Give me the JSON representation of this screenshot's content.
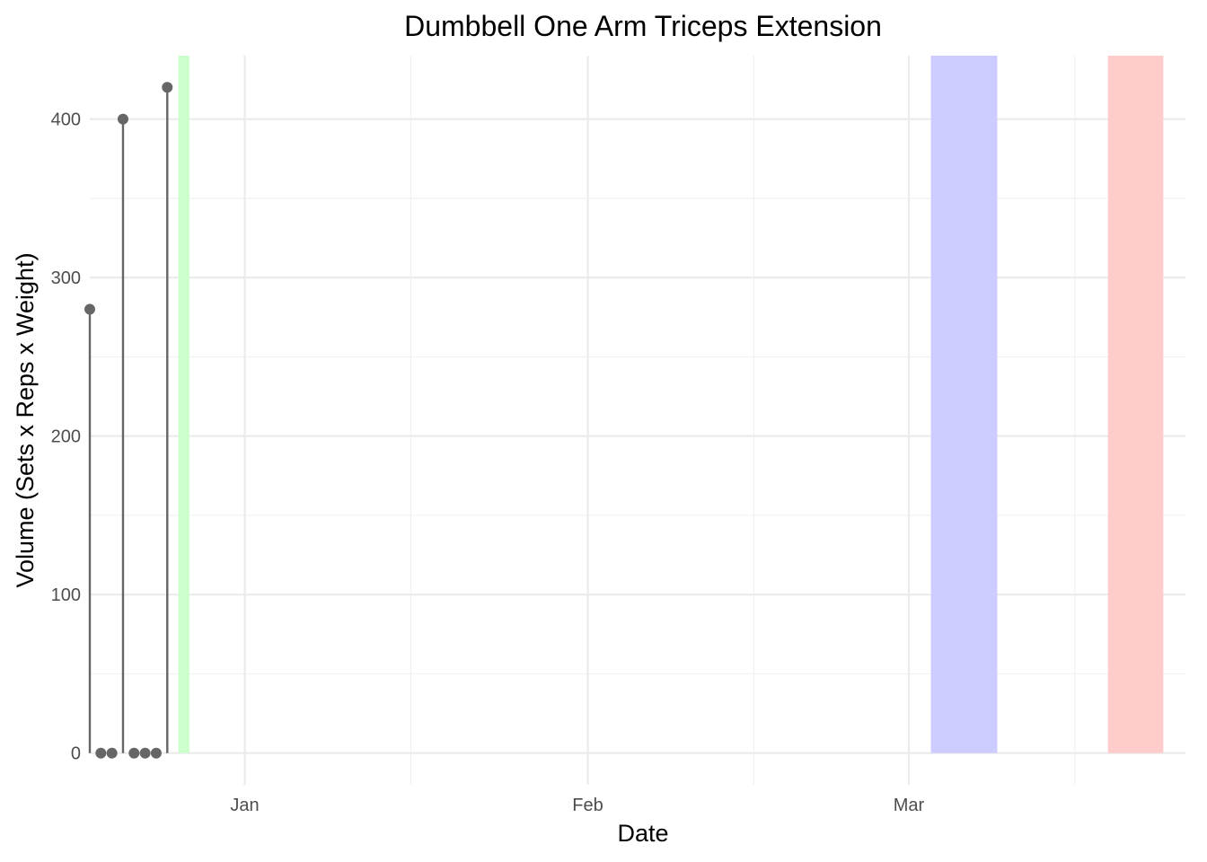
{
  "chart_data": {
    "type": "lollipop",
    "title": "Dumbbell One Arm Triceps Extension",
    "xlabel": "Date",
    "ylabel": "Volume (Sets x Reps x Weight)",
    "x_axis": {
      "type": "date",
      "range": [
        "2023-12-18",
        "2024-03-26"
      ],
      "major_ticks": [
        {
          "date": "2024-01-01",
          "label": "Jan"
        },
        {
          "date": "2024-02-01",
          "label": "Feb"
        },
        {
          "date": "2024-03-01",
          "label": "Mar"
        }
      ],
      "minor_ticks": [
        "2024-01-16",
        "2024-02-16",
        "2024-03-16"
      ]
    },
    "y_axis": {
      "range": [
        -20,
        440
      ],
      "major_ticks": [
        0,
        100,
        200,
        300,
        400
      ],
      "minor_ticks": [
        50,
        150,
        250,
        350
      ]
    },
    "grid": true,
    "series": [
      {
        "color": "#666666",
        "points": [
          {
            "date": "2023-12-18",
            "value": 280
          },
          {
            "date": "2023-12-19",
            "value": 0
          },
          {
            "date": "2023-12-20",
            "value": 0
          },
          {
            "date": "2023-12-21",
            "value": 400
          },
          {
            "date": "2023-12-22",
            "value": 0
          },
          {
            "date": "2023-12-23",
            "value": 0
          },
          {
            "date": "2023-12-24",
            "value": 0
          },
          {
            "date": "2023-12-25",
            "value": 420
          }
        ]
      }
    ],
    "bands": [
      {
        "start": "2023-12-26",
        "end": "2023-12-27",
        "color": "#ccffcc"
      },
      {
        "start": "2024-03-03",
        "end": "2024-03-09",
        "color": "#ccccff"
      },
      {
        "start": "2024-03-19",
        "end": "2024-03-24",
        "color": "#ffcccc"
      }
    ]
  }
}
